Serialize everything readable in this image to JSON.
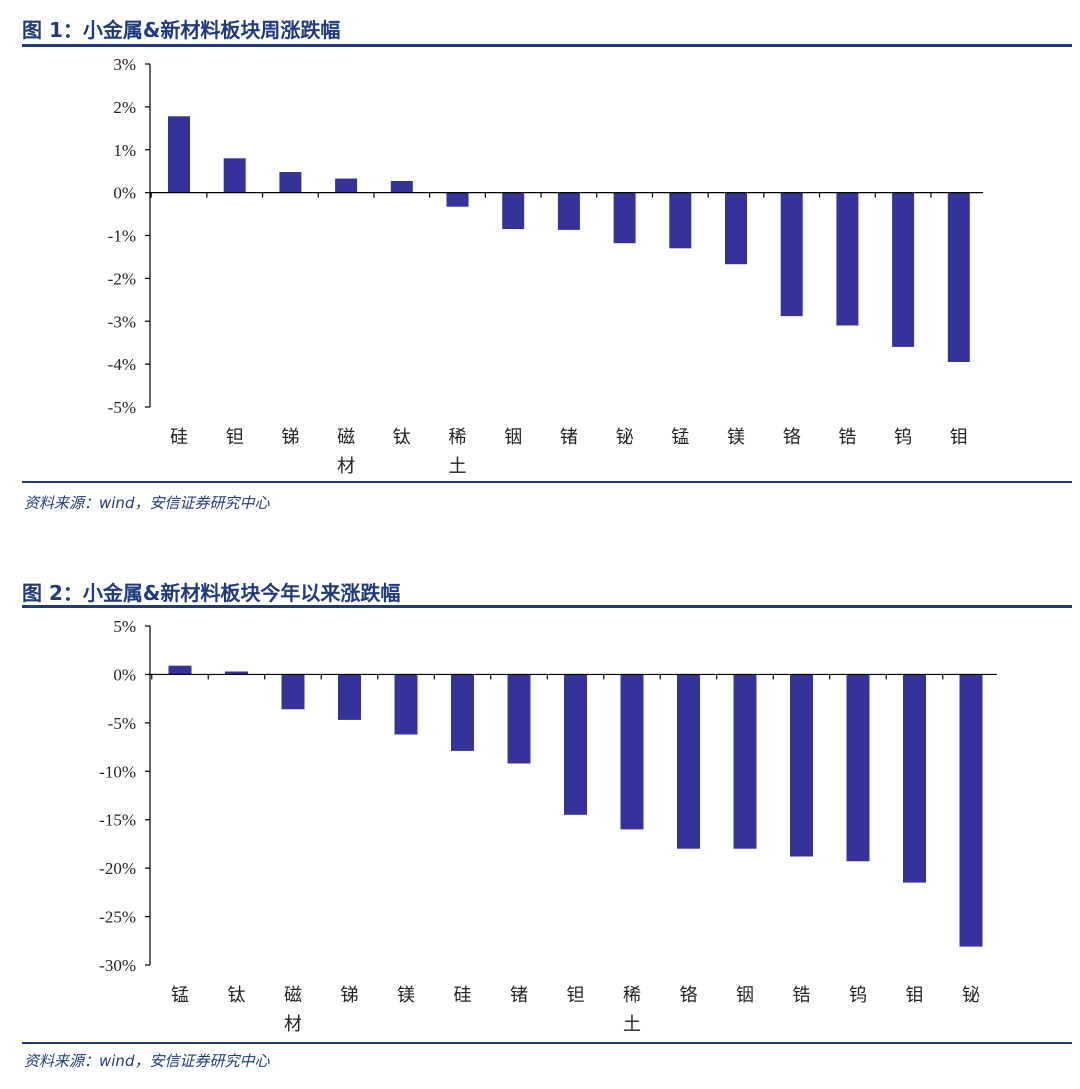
{
  "figures": [
    {
      "title": "图 1：小金属&新材料板块周涨跌幅",
      "source": "资料来源：wind，安信证券研究中心"
    },
    {
      "title": "图 2：小金属&新材料板块今年以来涨跌幅",
      "source": "资料来源：wind，安信证券研究中心"
    }
  ],
  "chart_data": [
    {
      "type": "bar",
      "title": "小金属&新材料板块周涨跌幅",
      "categories": [
        "硅",
        "钽",
        "锑",
        "磁材",
        "钛",
        "稀土",
        "铟",
        "锗",
        "铋",
        "锰",
        "镁",
        "铬",
        "锆",
        "钨",
        "钼"
      ],
      "values": [
        1.78,
        0.8,
        0.48,
        0.33,
        0.27,
        -0.33,
        -0.85,
        -0.87,
        -1.18,
        -1.3,
        -1.67,
        -2.88,
        -3.1,
        -3.6,
        -3.95
      ],
      "unit": "%",
      "ylim": [
        -5,
        3
      ],
      "yticks": [
        3,
        2,
        1,
        0,
        -1,
        -2,
        -3,
        -4,
        -5
      ],
      "ytick_labels": [
        "3%",
        "2%",
        "1%",
        "0%",
        "-1%",
        "-2%",
        "-3%",
        "-4%",
        "-5%"
      ],
      "bar_color": "#333399",
      "grid": false,
      "legend": "none"
    },
    {
      "type": "bar",
      "title": "小金属&新材料板块今年以来涨跌幅",
      "categories": [
        "锰",
        "钛",
        "磁材",
        "锑",
        "镁",
        "硅",
        "锗",
        "钽",
        "稀土",
        "铬",
        "铟",
        "锆",
        "钨",
        "钼",
        "铋"
      ],
      "values": [
        0.9,
        0.3,
        -3.6,
        -4.7,
        -6.2,
        -7.9,
        -9.2,
        -14.5,
        -16.0,
        -18.0,
        -18.0,
        -18.8,
        -19.3,
        -21.5,
        -28.1
      ],
      "unit": "%",
      "ylim": [
        -30,
        5
      ],
      "yticks": [
        5,
        0,
        -5,
        -10,
        -15,
        -20,
        -25,
        -30
      ],
      "ytick_labels": [
        "5%",
        "0%",
        "-5%",
        "-10%",
        "-15%",
        "-20%",
        "-25%",
        "-30%"
      ],
      "bar_color": "#333399",
      "grid": false,
      "legend": "none"
    }
  ]
}
